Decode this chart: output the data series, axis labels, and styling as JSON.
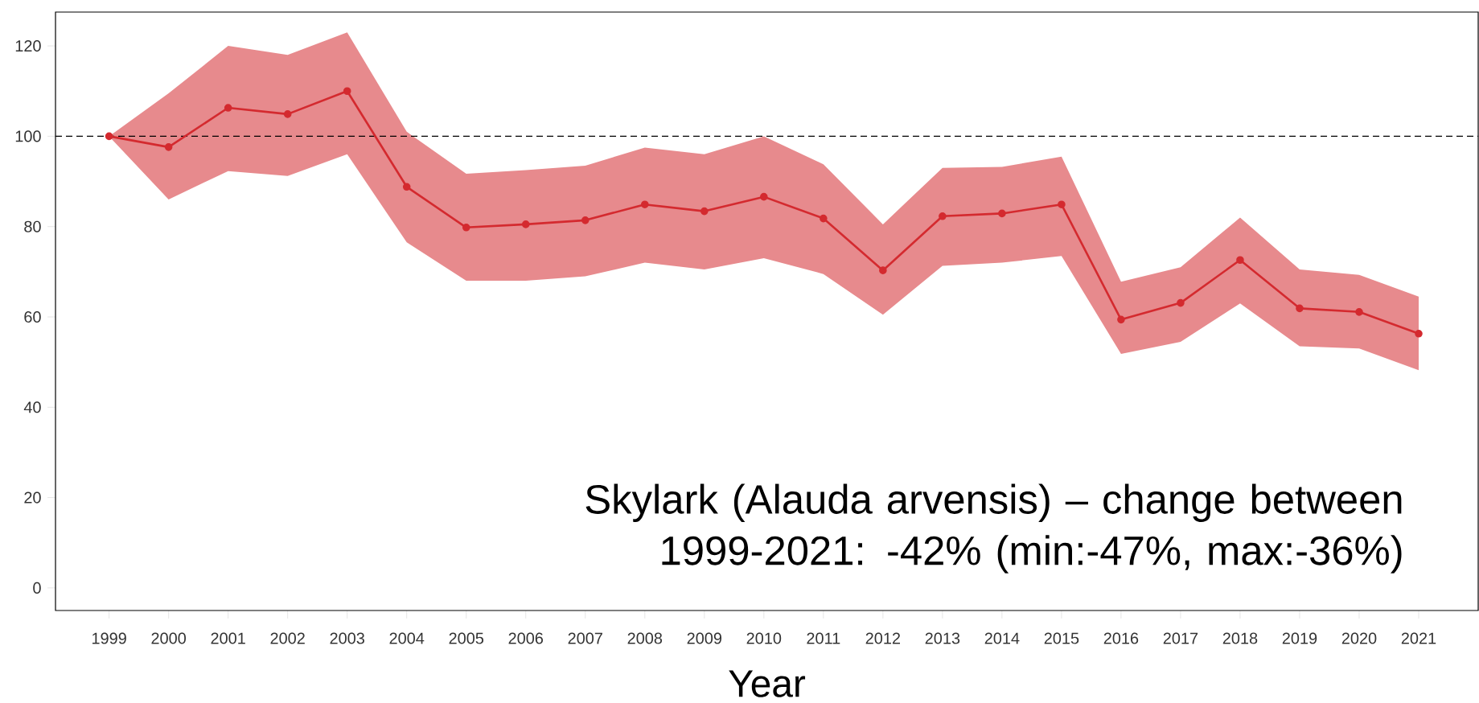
{
  "chart_data": {
    "type": "line",
    "xlabel": "Year",
    "annotations": [
      "Skylark (Alauda arvensis) – change between 1999-2021: -42% (min:-47%, max:-36%)"
    ],
    "x": [
      1999,
      2000,
      2001,
      2002,
      2003,
      2004,
      2005,
      2006,
      2007,
      2008,
      2009,
      2010,
      2011,
      2012,
      2013,
      2014,
      2015,
      2016,
      2017,
      2018,
      2019,
      2020,
      2021
    ],
    "series": [
      {
        "color": "#d42a2f",
        "values": [
          100,
          97.6,
          106.3,
          104.9,
          110,
          88.8,
          79.8,
          80.5,
          81.4,
          84.9,
          83.4,
          86.6,
          81.8,
          70.3,
          82.3,
          82.9,
          84.9,
          59.4,
          63.1,
          72.6,
          61.9,
          61.1,
          56.3
        ],
        "lower": [
          100,
          86,
          92.3,
          91.2,
          96,
          76.5,
          68,
          68,
          69,
          72,
          70.5,
          73,
          69.5,
          60.5,
          71.3,
          72,
          73.5,
          51.8,
          54.5,
          63,
          53.5,
          53,
          48.2
        ],
        "upper": [
          100,
          109.5,
          120,
          118,
          123,
          101,
          91.7,
          92.5,
          93.5,
          97.5,
          96,
          100,
          93.8,
          80.5,
          93,
          93.2,
          95.5,
          67.8,
          71,
          82,
          70.5,
          69.3,
          64.5
        ]
      }
    ],
    "xlim": [
      1998.1,
      2022
    ],
    "ylim": [
      -5,
      127.5
    ],
    "xticks": [
      1999,
      2000,
      2001,
      2002,
      2003,
      2004,
      2005,
      2006,
      2007,
      2008,
      2009,
      2010,
      2011,
      2012,
      2013,
      2014,
      2015,
      2016,
      2017,
      2018,
      2019,
      2020,
      2021
    ],
    "yticks": [
      0,
      20,
      40,
      60,
      80,
      100,
      120
    ],
    "ref_lines": [
      {
        "axis": "y",
        "value": 100,
        "color": "#000000",
        "line_style": "dashed"
      }
    ],
    "marker": "circle",
    "line_style": "solid"
  }
}
